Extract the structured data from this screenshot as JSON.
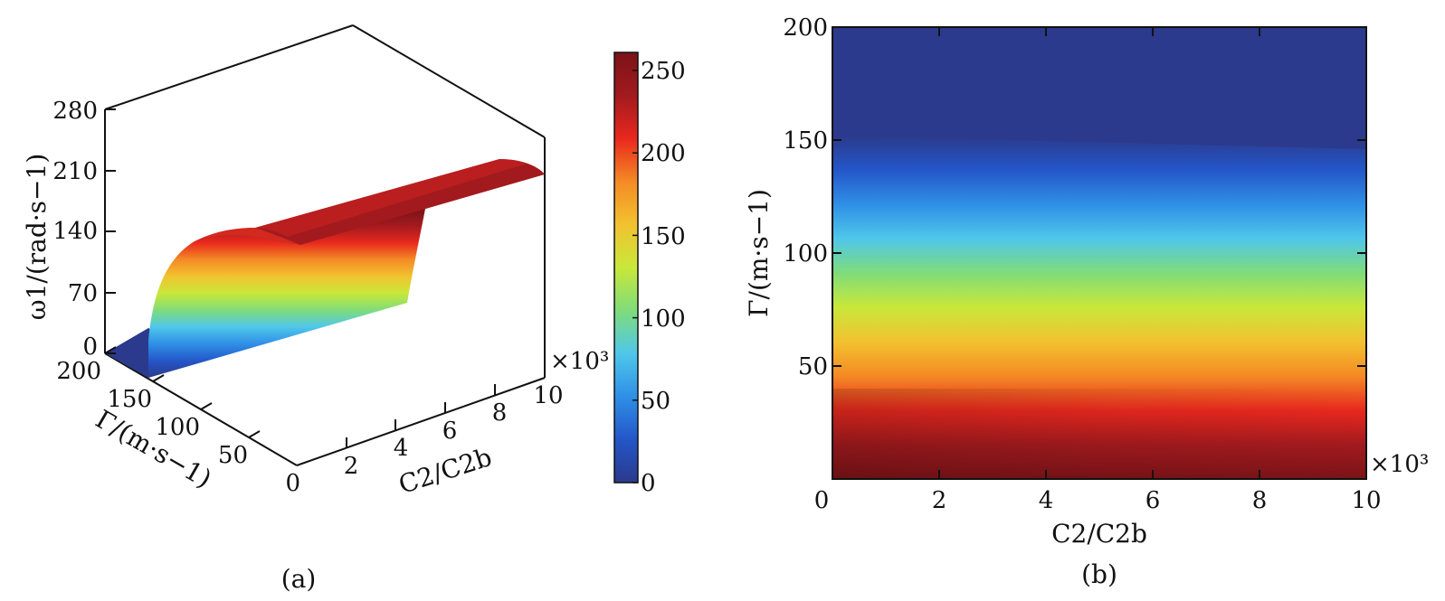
{
  "colormap": [
    "#2b3a8c",
    "#2456c8",
    "#2f8fe6",
    "#4fc7ea",
    "#7fdc7a",
    "#c9e83a",
    "#f2c230",
    "#f48a24",
    "#e8281e",
    "#a21a1e",
    "#7a1317"
  ],
  "chart_data": [
    {
      "panel": "a",
      "type": "surface",
      "caption": "(a)",
      "zlabel": "ω1/(rad·s−1)",
      "ylabel": "Γ/(m·s−1)",
      "xlabel": "C2/C2b",
      "x_multiplier": "×10³",
      "z_ticks": [
        "0",
        "70",
        "140",
        "210",
        "280"
      ],
      "y_ticks": [
        "200",
        "150",
        "100",
        "50",
        "0"
      ],
      "x_ticks": [
        "2",
        "4",
        "6",
        "8",
        "10"
      ],
      "zlim": [
        0,
        280
      ],
      "ylim": [
        0,
        200
      ],
      "xlim": [
        0,
        10
      ],
      "colorbar": {
        "ticks": [
          "0",
          "50",
          "100",
          "150",
          "200",
          "250"
        ],
        "lim": [
          0,
          250
        ]
      },
      "plateau_value": 250,
      "gamma_edge": 150
    },
    {
      "panel": "b",
      "type": "heatmap",
      "caption": "(b)",
      "xlabel": "C2/C2b",
      "ylabel": "Γ/(m·s−1)",
      "x_multiplier": "×10³",
      "x_ticks": [
        "0",
        "2",
        "4",
        "6",
        "8",
        "10"
      ],
      "y_ticks": [
        "50",
        "100",
        "150",
        "200"
      ],
      "xlim": [
        0,
        10
      ],
      "ylim": [
        0,
        200
      ],
      "boundary_gamma": {
        "x": [
          0,
          10
        ],
        "y": [
          152,
          146
        ]
      },
      "max_value": 250
    }
  ]
}
